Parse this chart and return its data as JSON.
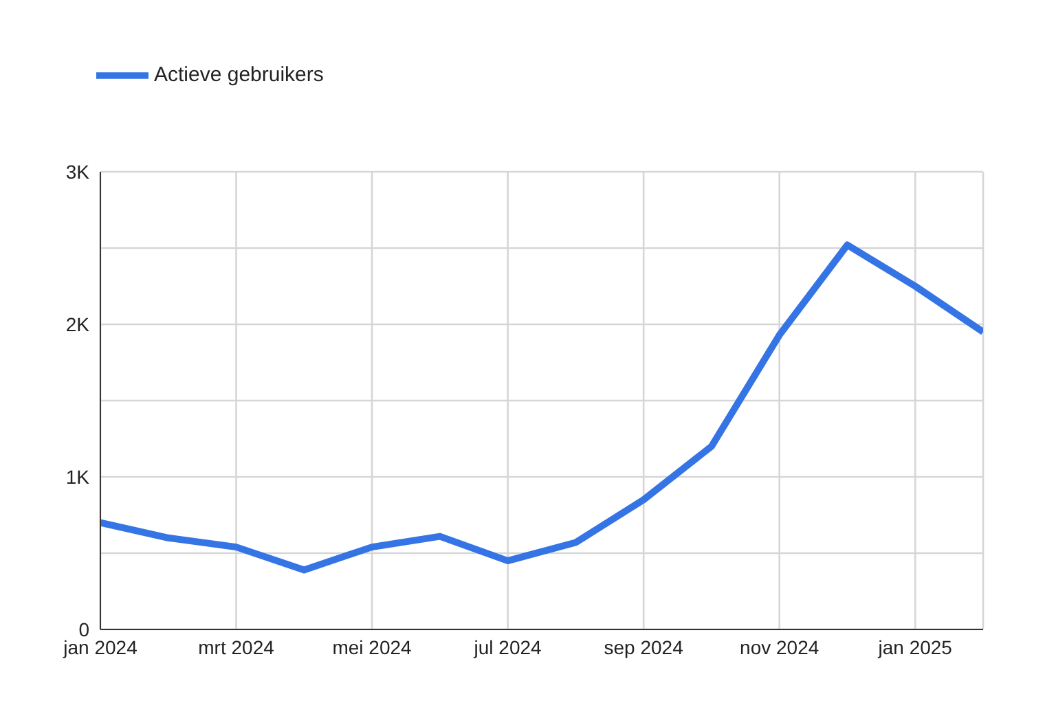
{
  "chart_data": {
    "type": "line",
    "x": [
      "2024-01",
      "2024-02",
      "2024-03",
      "2024-04",
      "2024-05",
      "2024-06",
      "2024-07",
      "2024-08",
      "2024-09",
      "2024-10",
      "2024-11",
      "2024-12",
      "2025-01",
      "2025-02"
    ],
    "series": [
      {
        "name": "Actieve gebruikers",
        "color": "#3574e5",
        "values": [
          700,
          600,
          540,
          390,
          540,
          610,
          450,
          570,
          850,
          1200,
          1930,
          2520,
          2250,
          1950
        ]
      }
    ],
    "xlim": [
      "2024-01",
      "2025-02"
    ],
    "xticks": [
      {
        "value": "2024-01",
        "label": "jan 2024"
      },
      {
        "value": "2024-03",
        "label": "mrt 2024"
      },
      {
        "value": "2024-05",
        "label": "mei 2024"
      },
      {
        "value": "2024-07",
        "label": "jul 2024"
      },
      {
        "value": "2024-09",
        "label": "sep 2024"
      },
      {
        "value": "2024-11",
        "label": "nov 2024"
      },
      {
        "value": "2025-01",
        "label": "jan 2025"
      }
    ],
    "ylim": [
      0,
      3000
    ],
    "yticks": [
      {
        "value": 0,
        "label": "0"
      },
      {
        "value": 500,
        "label": null
      },
      {
        "value": 1000,
        "label": "1K"
      },
      {
        "value": 1500,
        "label": null
      },
      {
        "value": 2000,
        "label": "2K"
      },
      {
        "value": 2500,
        "label": null
      },
      {
        "value": 3000,
        "label": "3K"
      }
    ],
    "grid": true,
    "legend": "top left",
    "marker": "none",
    "line_style": "solid"
  }
}
